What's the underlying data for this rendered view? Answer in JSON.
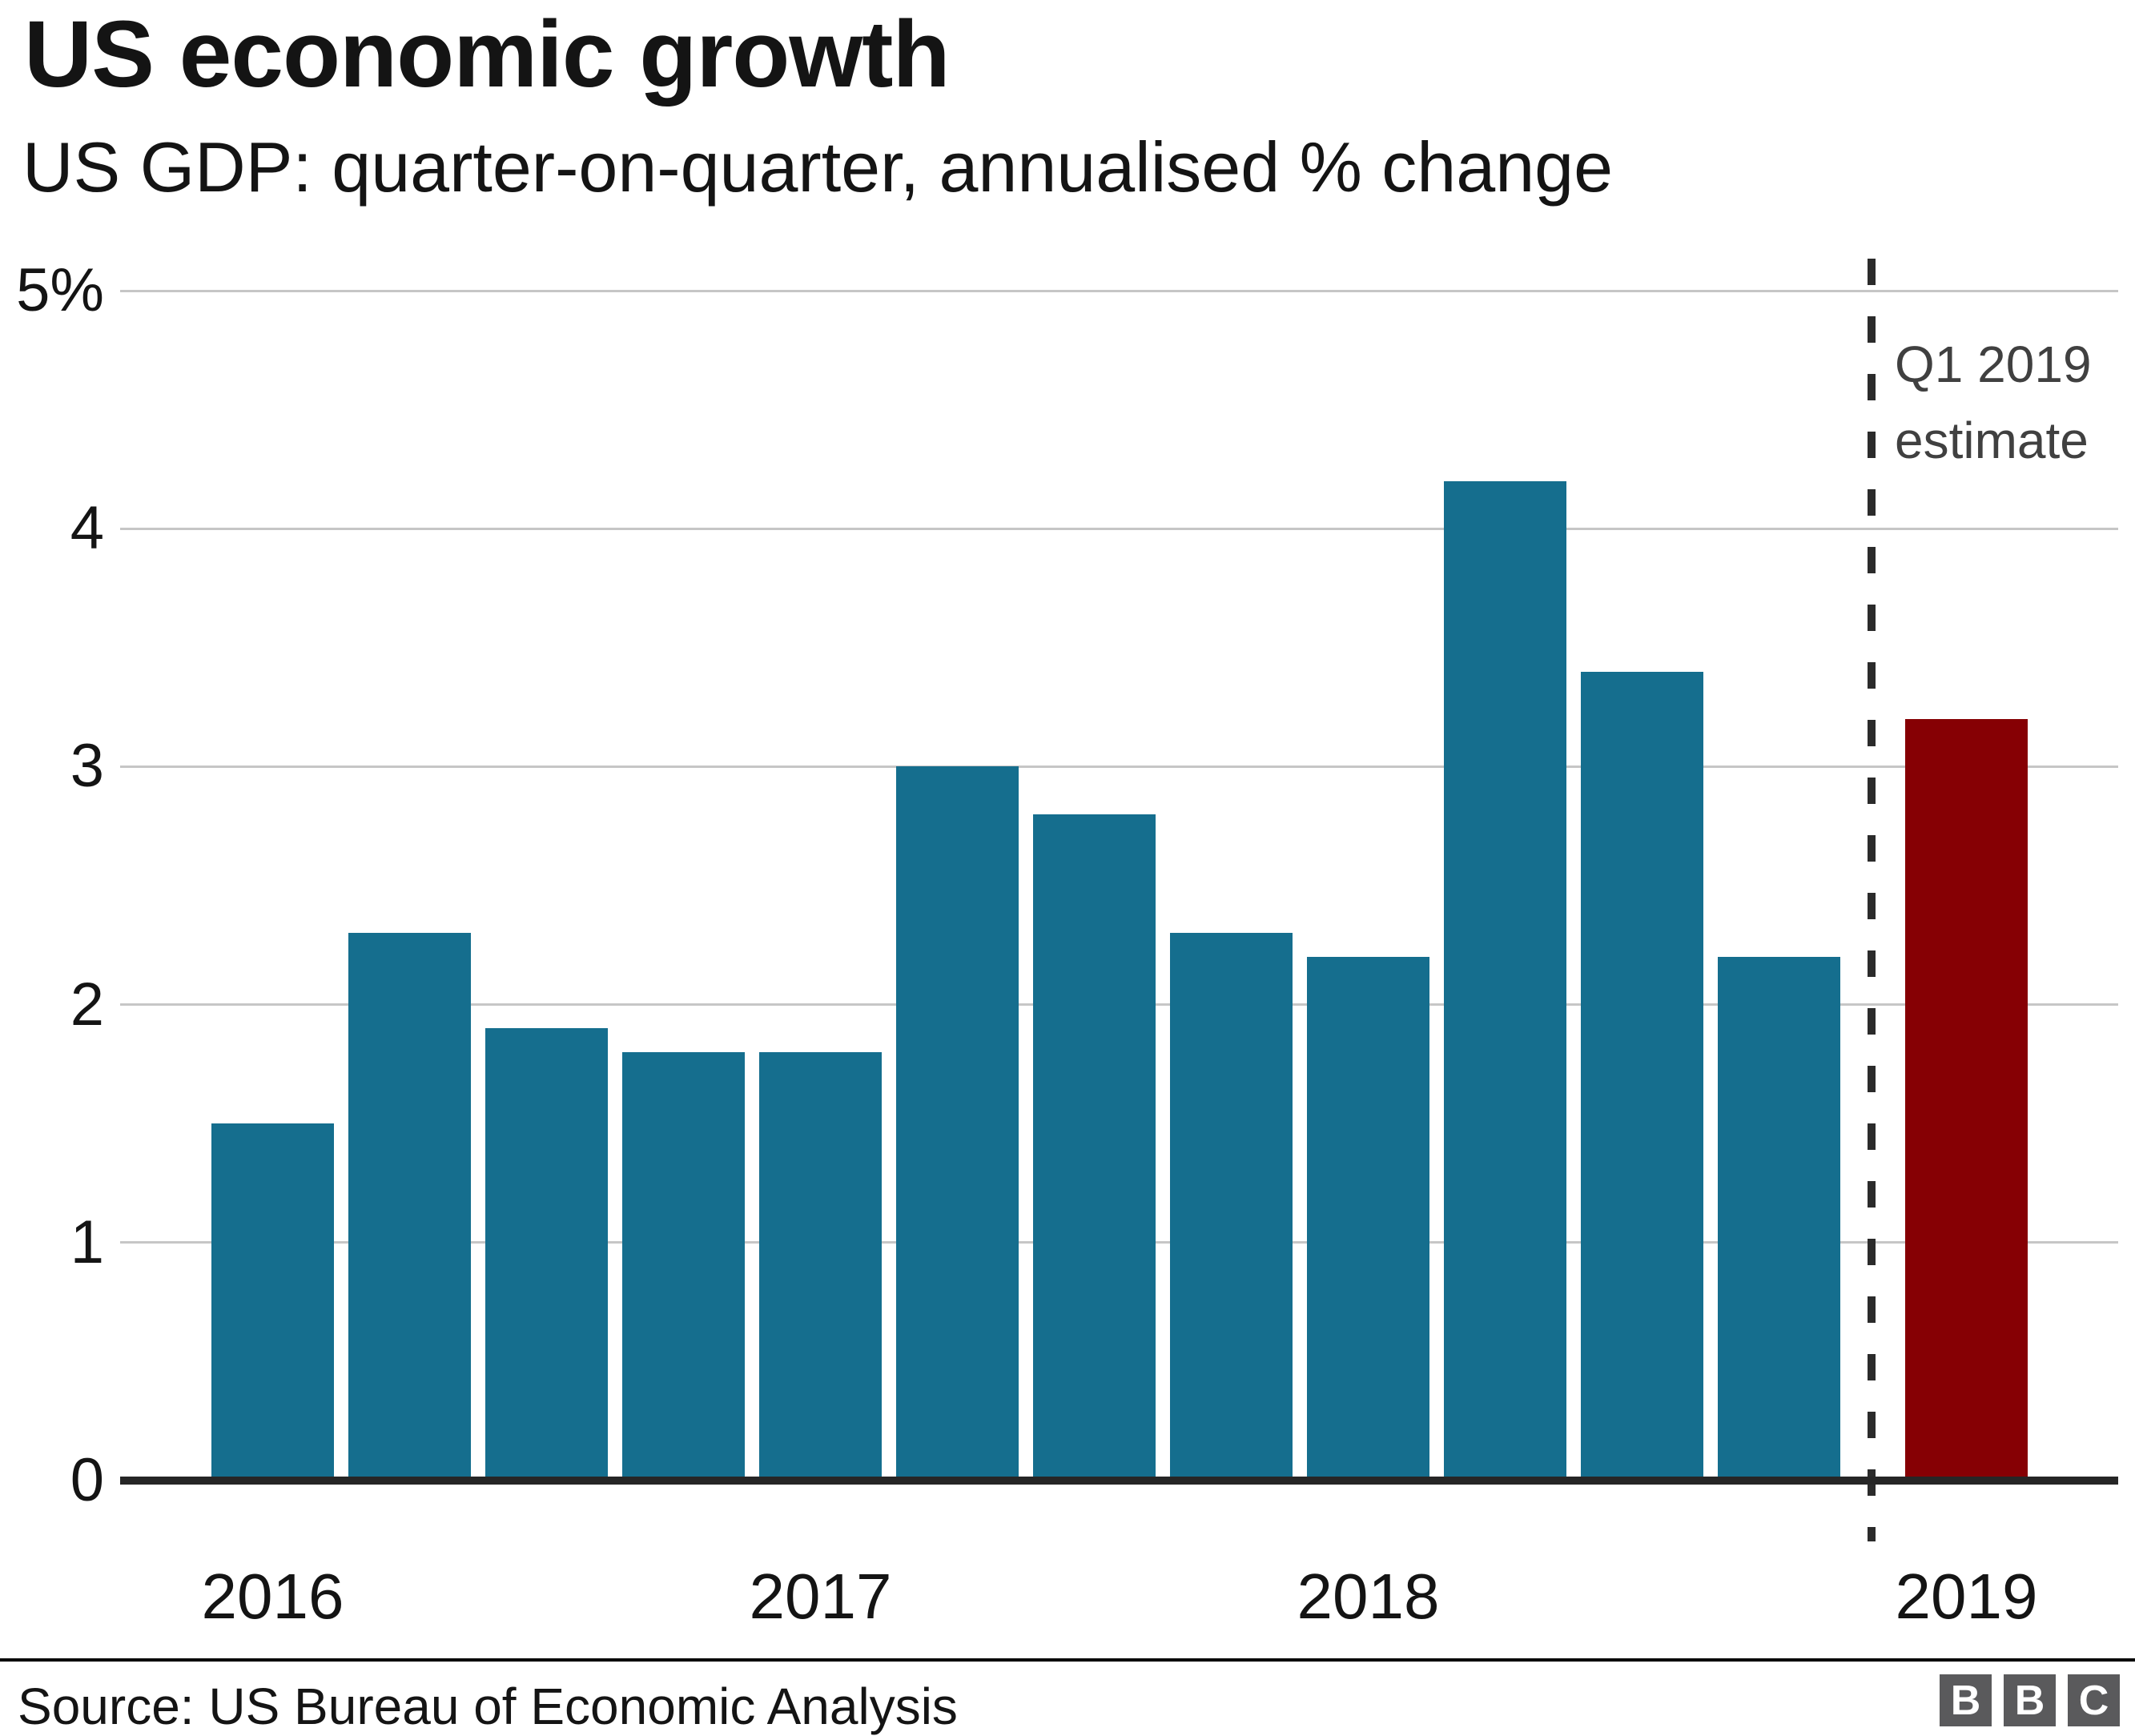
{
  "header": {
    "title": "US economic growth",
    "subtitle": "US GDP: quarter-on-quarter, annualised % change"
  },
  "annotation": {
    "line1": "Q1 2019",
    "line2": "estimate"
  },
  "footer": {
    "source": "Source: US Bureau of Economic Analysis",
    "logo_letters": [
      "B",
      "B",
      "C"
    ]
  },
  "chart_data": {
    "type": "bar",
    "title": "US economic growth",
    "subtitle": "US GDP: quarter-on-quarter, annualised % change",
    "ylabel": "annualised % change",
    "ylim": [
      0,
      5
    ],
    "grid": true,
    "legend": "none",
    "yticks": [
      {
        "value": 0,
        "label": "0"
      },
      {
        "value": 1,
        "label": "1"
      },
      {
        "value": 2,
        "label": "2"
      },
      {
        "value": 3,
        "label": "3"
      },
      {
        "value": 4,
        "label": "4"
      },
      {
        "value": 5,
        "label": "5%"
      }
    ],
    "categories": [
      "2016 Q1",
      "2016 Q2",
      "2016 Q3",
      "2016 Q4",
      "2017 Q1",
      "2017 Q2",
      "2017 Q3",
      "2017 Q4",
      "2018 Q1",
      "2018 Q2",
      "2018 Q3",
      "2018 Q4"
    ],
    "values": [
      1.5,
      2.3,
      1.9,
      1.8,
      1.8,
      3.0,
      2.8,
      2.3,
      2.2,
      4.2,
      3.4,
      2.2
    ],
    "estimate": {
      "category": "2019 Q1",
      "value": 3.2,
      "label": "Q1 2019 estimate"
    },
    "x_year_labels": [
      "2016",
      "2017",
      "2018",
      "2019"
    ],
    "colors": {
      "bar": "#156e8e",
      "estimate_bar": "#860004",
      "gridline": "#c6c6c6",
      "axis": "#262626",
      "dashed_line": "#2b2b2b",
      "annotation_text": "#404040",
      "text": "#141414",
      "logo_square": "#5a5a5c"
    }
  }
}
